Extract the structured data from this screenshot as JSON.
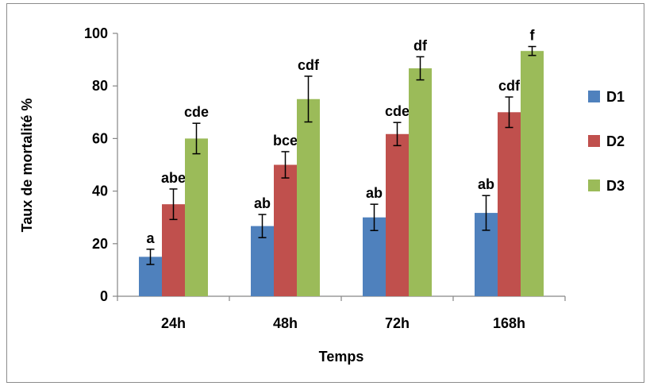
{
  "chart_data": {
    "type": "bar",
    "title": "",
    "xlabel": "Temps",
    "ylabel": "Taux de mortalité %",
    "ylim": [
      0,
      100
    ],
    "y_ticks": [
      "0",
      "20",
      "40",
      "60",
      "80",
      "100"
    ],
    "categories": [
      "24h",
      "48h",
      "72h",
      "168h"
    ],
    "series": [
      {
        "name": "D1",
        "color": "#4f81bd",
        "values": [
          15,
          26.7,
          30,
          31.7
        ],
        "errors": [
          2.9,
          4.4,
          5.0,
          6.6
        ],
        "letters": [
          "a",
          "ab",
          "ab",
          "ab"
        ]
      },
      {
        "name": "D2",
        "color": "#c0504d",
        "values": [
          35,
          50,
          61.7,
          70
        ],
        "errors": [
          5.8,
          5.0,
          4.4,
          5.8
        ],
        "letters": [
          "abe",
          "bce",
          "cde",
          "cdf"
        ]
      },
      {
        "name": "D3",
        "color": "#9bbb59",
        "values": [
          60,
          75,
          86.7,
          93.3
        ],
        "errors": [
          5.8,
          8.7,
          4.4,
          1.7
        ],
        "letters": [
          "cde",
          "cdf",
          "df",
          "f"
        ]
      }
    ],
    "grid": false,
    "legend_position": "right"
  }
}
